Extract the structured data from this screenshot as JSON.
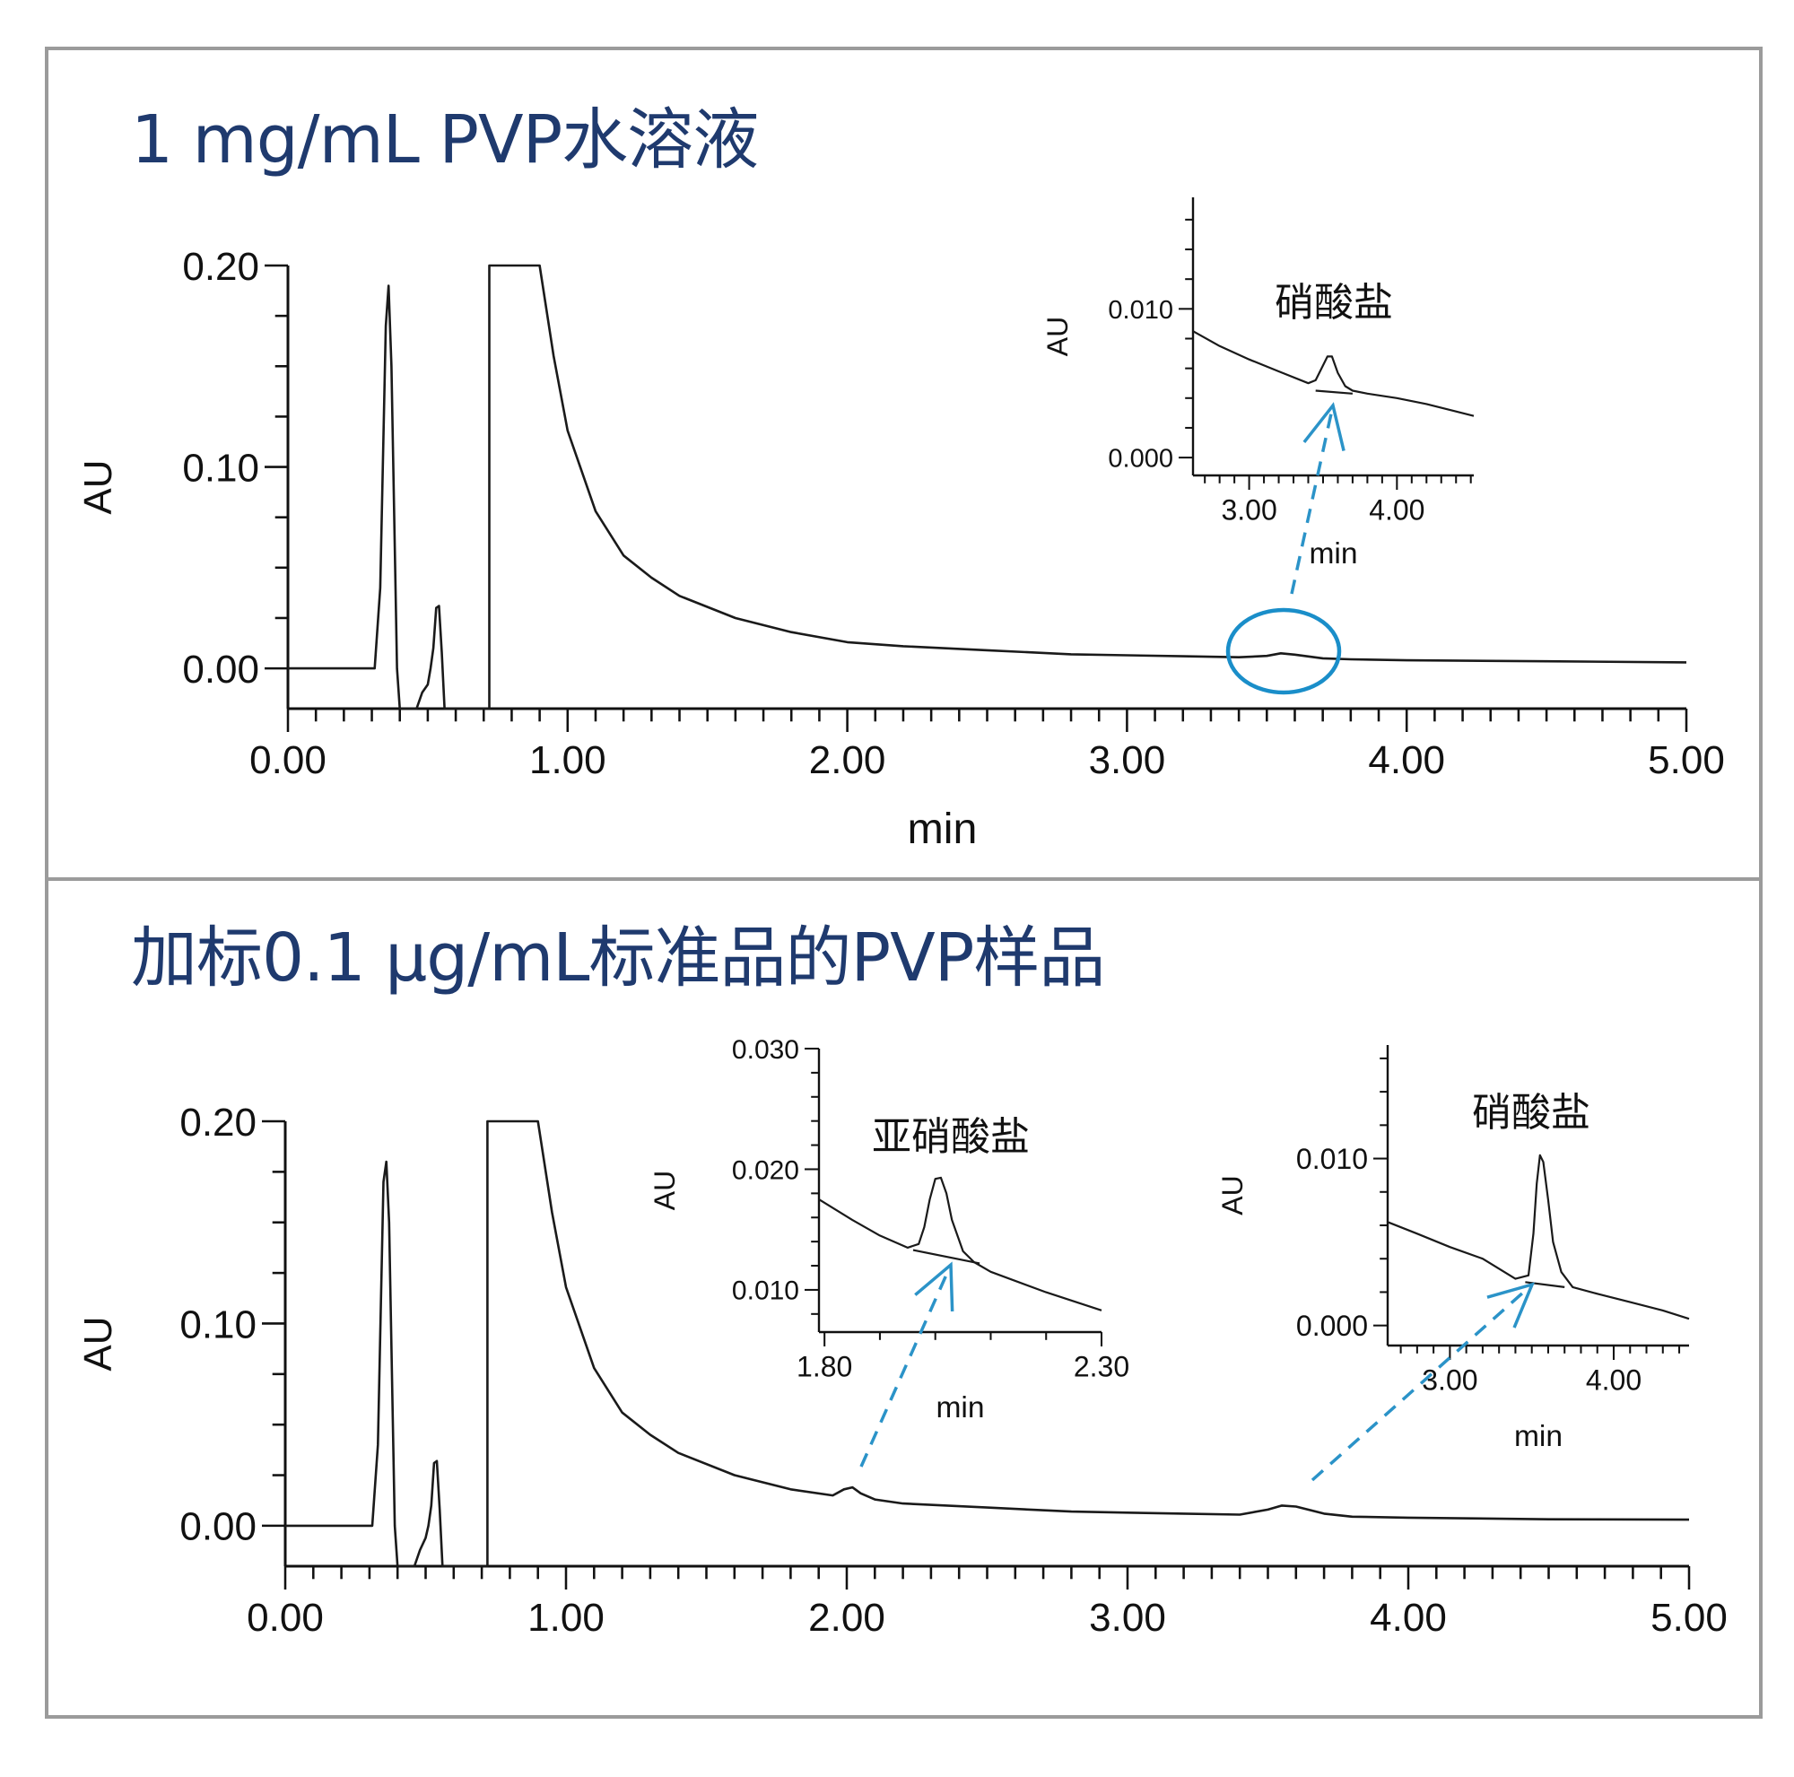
{
  "colors": {
    "title": "#1f3a6e",
    "trace": "#1a1a1a",
    "highlight": "#1a8ec9",
    "arrow": "#2b93c8",
    "frame": "#9b9b9b"
  },
  "panels": {
    "top": {
      "title": "1 mg/mL PVP水溶液"
    },
    "bottom": {
      "title": "加标0.1 µg/mL标准品的PVP样品"
    }
  },
  "chart_data": [
    {
      "type": "line",
      "panel": "top",
      "role": "main",
      "xlabel": "min",
      "ylabel": "AU",
      "xlim": [
        0,
        5
      ],
      "ylim": [
        -0.02,
        0.2
      ],
      "xticks": [
        0,
        1,
        2,
        3,
        4,
        5
      ],
      "xtick_labels": [
        "0.00",
        "1.00",
        "2.00",
        "3.00",
        "4.00",
        "5.00"
      ],
      "yticks": [
        0,
        0.1,
        0.2
      ],
      "ytick_labels": [
        "0.00",
        "0.10",
        "0.20"
      ],
      "series": [
        {
          "x": [
            0.0,
            0.2,
            0.31,
            0.33,
            0.35,
            0.36,
            0.37,
            0.39,
            0.4,
            0.41,
            0.43,
            0.46,
            0.48,
            0.5,
            0.51,
            0.52,
            0.53,
            0.54,
            0.55,
            0.56,
            0.7,
            0.72,
            0.72,
            0.9,
            0.95,
            1.0,
            1.1,
            1.2,
            1.3,
            1.4,
            1.6,
            1.8,
            2.0,
            2.2,
            2.5,
            2.8,
            3.0,
            3.2,
            3.4,
            3.5,
            3.55,
            3.6,
            3.7,
            3.8,
            4.0,
            4.5,
            5.0
          ],
          "y": [
            0.0,
            0.0,
            0.0,
            0.04,
            0.17,
            0.19,
            0.15,
            0.0,
            -0.02,
            -0.02,
            -0.02,
            -0.02,
            -0.012,
            -0.008,
            0.0,
            0.01,
            0.03,
            0.031,
            0.008,
            -0.02,
            -0.02,
            -0.02,
            0.2,
            0.2,
            0.155,
            0.118,
            0.078,
            0.056,
            0.045,
            0.036,
            0.025,
            0.018,
            0.013,
            0.011,
            0.009,
            0.007,
            0.0065,
            0.006,
            0.0055,
            0.0062,
            0.0075,
            0.0068,
            0.005,
            0.0045,
            0.004,
            0.0035,
            0.003
          ]
        }
      ],
      "annotations": [
        {
          "type": "ellipse",
          "x": 3.56,
          "y": 0.0085
        }
      ]
    },
    {
      "type": "line",
      "panel": "top",
      "role": "inset",
      "xlabel": "min",
      "ylabel": "AU",
      "xlim": [
        2.62,
        4.52
      ],
      "ylim": [
        -0.0012,
        0.0175
      ],
      "xticks": [
        3.0,
        4.0
      ],
      "xtick_labels": [
        "3.00",
        "4.00"
      ],
      "yticks": [
        0,
        0.01
      ],
      "ytick_labels": [
        "0.000",
        "0.010"
      ],
      "peak_label": "硝酸盐",
      "series": [
        {
          "x": [
            2.62,
            2.8,
            3.0,
            3.2,
            3.4,
            3.45,
            3.5,
            3.53,
            3.56,
            3.6,
            3.65,
            3.7,
            3.8,
            4.0,
            4.2,
            4.4,
            4.52
          ],
          "y": [
            0.0085,
            0.0075,
            0.0066,
            0.0058,
            0.005,
            0.0052,
            0.0062,
            0.0068,
            0.0068,
            0.0057,
            0.0048,
            0.0045,
            0.0043,
            0.004,
            0.0036,
            0.0031,
            0.0028
          ]
        },
        {
          "x": [
            3.45,
            3.7
          ],
          "y": [
            0.0045,
            0.0043
          ]
        }
      ]
    },
    {
      "type": "line",
      "panel": "bottom",
      "role": "main",
      "xlabel": "",
      "ylabel": "AU",
      "xlim": [
        0,
        5
      ],
      "ylim": [
        -0.02,
        0.2
      ],
      "xticks": [
        0,
        1,
        2,
        3,
        4,
        5
      ],
      "xtick_labels": [
        "0.00",
        "1.00",
        "2.00",
        "3.00",
        "4.00",
        "5.00"
      ],
      "yticks": [
        0,
        0.1,
        0.2
      ],
      "ytick_labels": [
        "0.00",
        "0.10",
        "0.20"
      ],
      "series": [
        {
          "x": [
            0.0,
            0.2,
            0.31,
            0.33,
            0.35,
            0.36,
            0.37,
            0.39,
            0.4,
            0.41,
            0.43,
            0.46,
            0.48,
            0.5,
            0.51,
            0.52,
            0.53,
            0.54,
            0.55,
            0.56,
            0.7,
            0.72,
            0.72,
            0.9,
            0.95,
            1.0,
            1.1,
            1.2,
            1.3,
            1.4,
            1.6,
            1.8,
            1.95,
            1.99,
            2.02,
            2.05,
            2.1,
            2.2,
            2.5,
            2.8,
            3.0,
            3.2,
            3.4,
            3.5,
            3.55,
            3.6,
            3.7,
            3.8,
            4.0,
            4.5,
            5.0
          ],
          "y": [
            0.0,
            0.0,
            0.0,
            0.04,
            0.17,
            0.18,
            0.15,
            0.0,
            -0.02,
            -0.02,
            -0.02,
            -0.02,
            -0.012,
            -0.006,
            0.0,
            0.01,
            0.031,
            0.032,
            0.008,
            -0.02,
            -0.02,
            -0.02,
            0.2,
            0.2,
            0.155,
            0.118,
            0.078,
            0.056,
            0.045,
            0.036,
            0.025,
            0.018,
            0.015,
            0.018,
            0.019,
            0.016,
            0.013,
            0.011,
            0.009,
            0.007,
            0.0065,
            0.006,
            0.0055,
            0.008,
            0.01,
            0.0095,
            0.006,
            0.0045,
            0.004,
            0.0032,
            0.003
          ]
        }
      ]
    },
    {
      "type": "line",
      "panel": "bottom",
      "role": "inset",
      "xlabel": "min",
      "ylabel": "AU",
      "xlim": [
        1.79,
        2.3
      ],
      "ylim": [
        0.0065,
        0.03
      ],
      "xticks": [
        1.8,
        2.3
      ],
      "xtick_labels": [
        "1.80",
        "2.30"
      ],
      "minor_xticks": [
        1.9,
        2.0,
        2.1,
        2.2
      ],
      "yticks": [
        0.01,
        0.02,
        0.03
      ],
      "ytick_labels": [
        "0.010",
        "0.020",
        "0.030"
      ],
      "peak_label": "亚硝酸盐",
      "series": [
        {
          "x": [
            1.79,
            1.85,
            1.9,
            1.95,
            1.97,
            1.98,
            1.99,
            2.0,
            2.01,
            2.02,
            2.03,
            2.05,
            2.07,
            2.1,
            2.2,
            2.3
          ],
          "y": [
            0.0175,
            0.0158,
            0.0145,
            0.0135,
            0.0138,
            0.0152,
            0.0175,
            0.0192,
            0.0193,
            0.018,
            0.0158,
            0.0132,
            0.0123,
            0.0115,
            0.0098,
            0.0083
          ]
        },
        {
          "x": [
            1.96,
            2.08
          ],
          "y": [
            0.0133,
            0.0122
          ]
        }
      ]
    },
    {
      "type": "line",
      "panel": "bottom",
      "role": "inset",
      "xlabel": "min",
      "ylabel": "AU",
      "xlim": [
        2.62,
        4.46
      ],
      "ylim": [
        -0.0012,
        0.0168
      ],
      "xticks": [
        3.0,
        4.0
      ],
      "xtick_labels": [
        "3.00",
        "4.00"
      ],
      "yticks": [
        0,
        0.01
      ],
      "ytick_labels": [
        "0.000",
        "0.010"
      ],
      "peak_label": "硝酸盐",
      "series": [
        {
          "x": [
            2.62,
            2.8,
            3.0,
            3.2,
            3.4,
            3.48,
            3.51,
            3.53,
            3.55,
            3.57,
            3.6,
            3.63,
            3.68,
            3.75,
            3.9,
            4.1,
            4.3,
            4.46
          ],
          "y": [
            0.0062,
            0.0055,
            0.0047,
            0.004,
            0.0028,
            0.003,
            0.0055,
            0.0085,
            0.0102,
            0.0098,
            0.0075,
            0.005,
            0.0032,
            0.0023,
            0.0019,
            0.0014,
            0.0009,
            0.0004
          ]
        },
        {
          "x": [
            3.46,
            3.7
          ],
          "y": [
            0.0026,
            0.0023
          ]
        }
      ]
    }
  ]
}
